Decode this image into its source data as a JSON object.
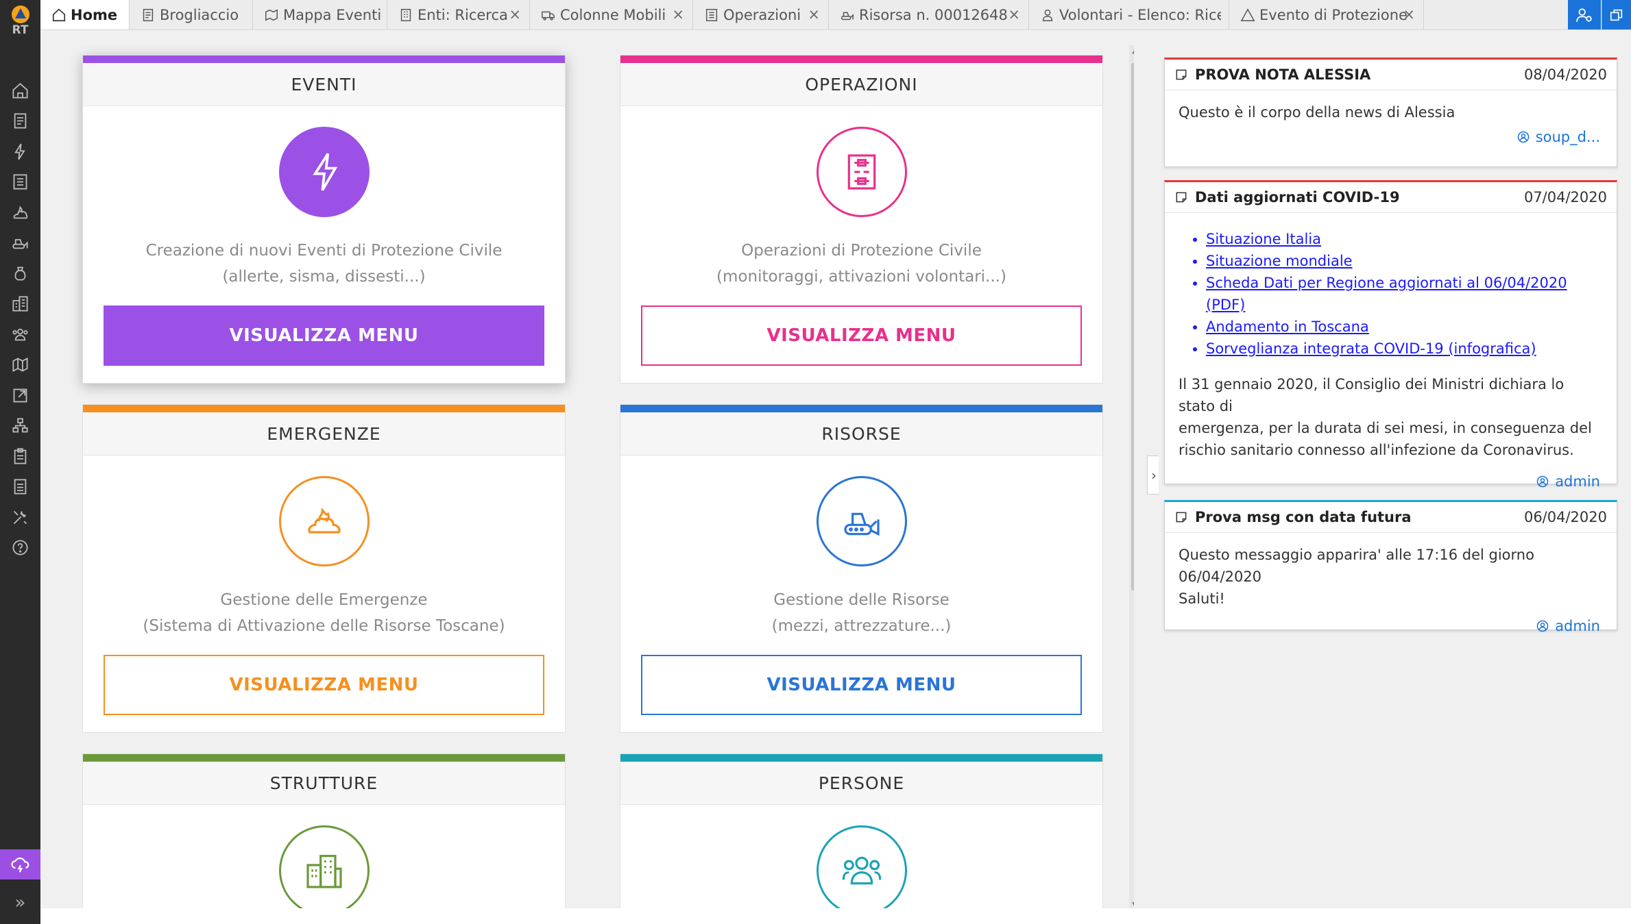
{
  "app": {
    "logo_text": "RT"
  },
  "tabs": [
    {
      "label": "Home",
      "icon": "home-icon",
      "active": true,
      "closable": false
    },
    {
      "label": "Brogliaccio",
      "icon": "document-icon",
      "closable": false
    },
    {
      "label": "Mappa Eventi",
      "icon": "map-icon",
      "closable": false
    },
    {
      "label": "Enti: Ricerca",
      "icon": "building-icon",
      "closable": true
    },
    {
      "label": "Colonne Mobili",
      "icon": "truck-icon",
      "closable": true
    },
    {
      "label": "Operazioni",
      "icon": "operations-icon",
      "closable": true
    },
    {
      "label": "Risorsa n. 00012648",
      "icon": "bulldozer-icon",
      "closable": true
    },
    {
      "label": "Volontari - Elenco: Ricer…",
      "icon": "person-icon",
      "closable": true
    },
    {
      "label": "Evento di Protezione Civi…",
      "icon": "warning-icon",
      "closable": true
    }
  ],
  "close_glyph": "×",
  "cards": [
    {
      "title": "EVENTI",
      "desc1": "Creazione di nuovi Eventi di Protezione Civile",
      "desc2": "(allerte, sisma, dissesti...)",
      "button": "VISUALIZZA MENU",
      "color": "#9b50e6"
    },
    {
      "title": "OPERAZIONI",
      "desc1": "Operazioni di Protezione Civile",
      "desc2": "(monitoraggi, attivazioni volontari...)",
      "button": "VISUALIZZA MENU",
      "color": "#e8308c"
    },
    {
      "title": "EMERGENZE",
      "desc1": "Gestione delle Emergenze",
      "desc2": "(Sistema di Attivazione delle Risorse Toscane)",
      "button": "VISUALIZZA MENU",
      "color": "#f5901e"
    },
    {
      "title": "RISORSE",
      "desc1": "Gestione delle Risorse",
      "desc2": "(mezzi, attrezzature...)",
      "button": "VISUALIZZA MENU",
      "color": "#2a75d6"
    },
    {
      "title": "STRUTTURE",
      "color": "#6a9a3a"
    },
    {
      "title": "PERSONE",
      "color": "#1aa3b5"
    }
  ],
  "news": [
    {
      "title": "PROVA NOTA ALESSIA",
      "date": "08/04/2020",
      "body": "Questo è il corpo della news di Alessia",
      "author": "soup_d...",
      "accent": "#e53935"
    },
    {
      "title": "Dati aggiornati COVID-19",
      "date": "07/04/2020",
      "links": [
        "Situazione Italia",
        "Situazione mondiale",
        "Scheda Dati per Regione aggiornati al 06/04/2020 (PDF)",
        "Andamento in Toscana",
        "Sorveglianza integrata COVID-19 (infografica)"
      ],
      "body_lines": [
        "Il 31 gennaio 2020, il Consiglio dei Ministri dichiara lo stato di",
        "emergenza, per la durata di sei mesi, in conseguenza del",
        "rischio sanitario connesso all'infezione da Coronavirus."
      ],
      "author": "admin",
      "accent": "#e53935"
    },
    {
      "title": "Prova msg con data futura",
      "date": "06/04/2020",
      "body_lines": [
        "Questo messaggio apparira' alle 17:16 del giorno 06/04/2020",
        "Saluti!"
      ],
      "author": "admin",
      "accent": "#1aa3d9"
    }
  ],
  "sidebar_icons": [
    "home-icon",
    "document-icon",
    "lightning-icon",
    "operations-icon",
    "fire-icon",
    "bulldozer-icon",
    "bag-icon",
    "buildings-icon",
    "people-icon",
    "map-icon",
    "export-icon",
    "network-icon",
    "clipboard-icon",
    "report-icon",
    "tools-icon",
    "help-icon"
  ]
}
